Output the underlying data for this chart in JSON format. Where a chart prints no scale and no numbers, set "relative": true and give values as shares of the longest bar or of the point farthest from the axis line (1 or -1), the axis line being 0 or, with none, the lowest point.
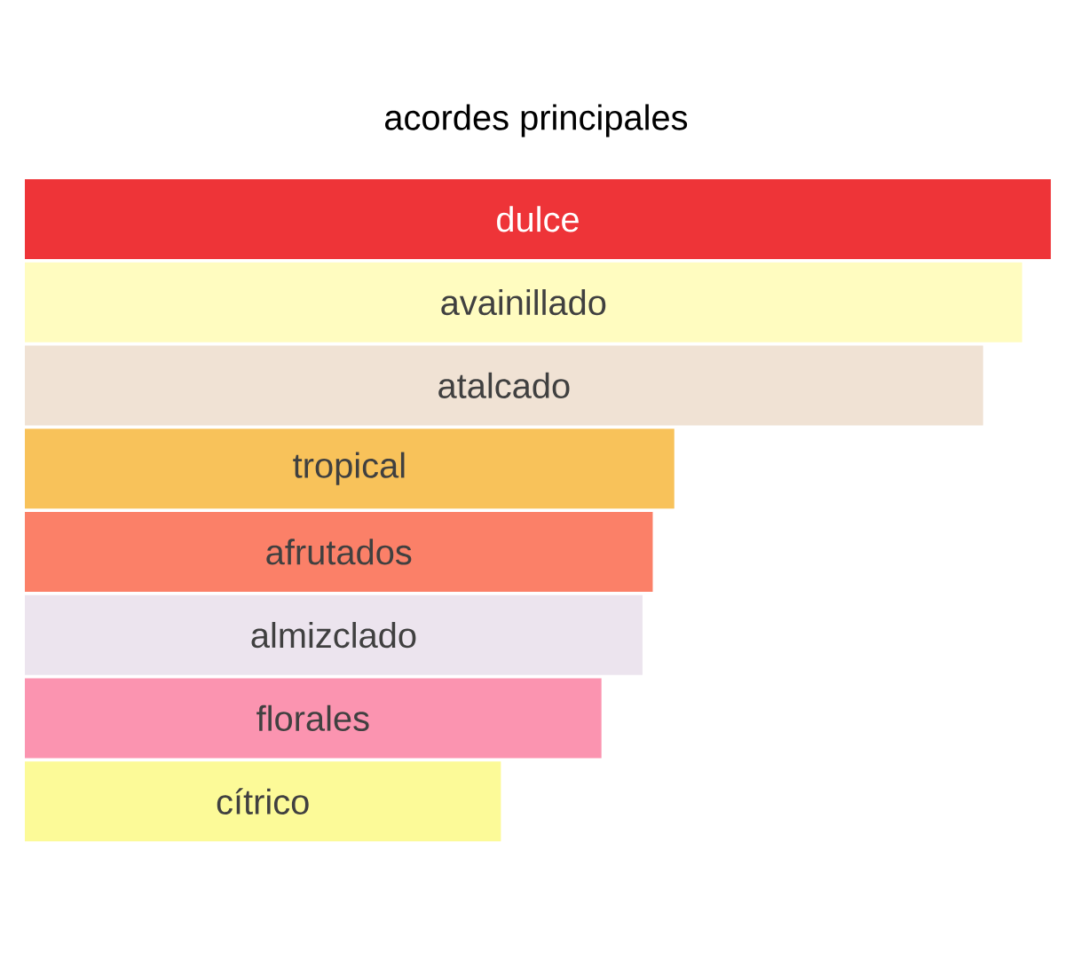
{
  "chart_data": {
    "type": "bar",
    "orientation": "horizontal",
    "relative": true,
    "title": "acordes principales",
    "categories": [
      "dulce",
      "avainillado",
      "atalcado",
      "tropical",
      "afrutados",
      "almizclado",
      "florales",
      "cítrico"
    ],
    "values": [
      1,
      0.972,
      0.934,
      0.633,
      0.612,
      0.602,
      0.562,
      0.464
    ],
    "colors": [
      "#ee3438",
      "#fffcc0",
      "#f0e2d4",
      "#f8c25a",
      "#fb8068",
      "#ece4ee",
      "#fb94b0",
      "#fcfa98"
    ]
  }
}
